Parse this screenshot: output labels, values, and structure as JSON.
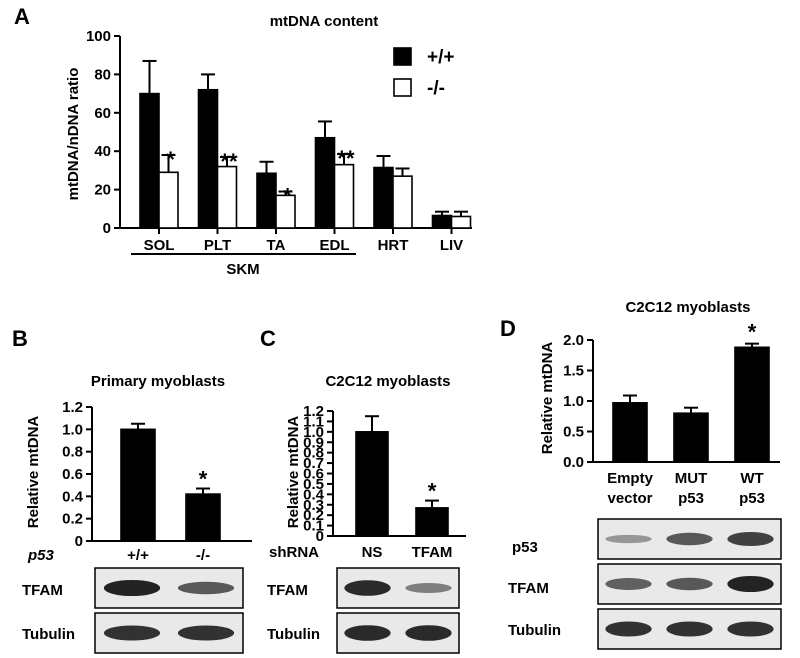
{
  "colors": {
    "bar_filled": "#000000",
    "bar_open": "#ffffff",
    "stroke": "#000000",
    "blot_bg": "#e9e9e9",
    "band": "#1a1a1a"
  },
  "panels": {
    "A": {
      "letter": "A",
      "title": "mtDNA content",
      "ylabel": "mtDNA/nDNA ratio",
      "group_label": "SKM",
      "legend": [
        "+/+",
        "-/-"
      ]
    },
    "B": {
      "letter": "B",
      "title": "Primary myoblasts",
      "ylabel": "Relative mtDNA",
      "row_label": "p53",
      "blots": [
        "TFAM",
        "Tubulin"
      ]
    },
    "C": {
      "letter": "C",
      "title": "C2C12 myoblasts",
      "ylabel": "Relative mtDNA",
      "row_label": "shRNA",
      "blots": [
        "TFAM",
        "Tubulin"
      ]
    },
    "D": {
      "letter": "D",
      "title": "C2C12 myoblasts",
      "ylabel": "Relative mtDNA",
      "blots": [
        "p53",
        "TFAM",
        "Tubulin"
      ]
    }
  },
  "chart_data": [
    {
      "panel": "A",
      "type": "bar",
      "title": "mtDNA content",
      "xlabel": "",
      "ylabel": "mtDNA/nDNA ratio",
      "ylim": [
        0,
        100
      ],
      "yticks": [
        0,
        20,
        40,
        60,
        80,
        100
      ],
      "categories": [
        "SOL",
        "PLT",
        "TA",
        "EDL",
        "HRT",
        "LIV"
      ],
      "series": [
        {
          "name": "+/+",
          "values": [
            70,
            72,
            28.5,
            47,
            31.5,
            6.5
          ],
          "errors": [
            17,
            8,
            6,
            8.5,
            6,
            2
          ]
        },
        {
          "name": "-/-",
          "values": [
            29,
            32,
            17,
            33,
            27,
            6
          ],
          "errors": [
            9,
            5,
            2,
            5.5,
            4,
            2.5
          ]
        }
      ],
      "annotations": [
        "*",
        "**",
        "*",
        "**",
        "",
        ""
      ],
      "grid": false,
      "legend": "top-right"
    },
    {
      "panel": "B",
      "type": "bar",
      "title": "Primary myoblasts",
      "xlabel": "p53",
      "ylabel": "Relative mtDNA",
      "ylim": [
        0,
        1.2
      ],
      "yticks": [
        "0",
        "0.2",
        "0.4",
        "0.6",
        "0.8",
        "1.0",
        "1.2"
      ],
      "categories": [
        "+/+",
        "-/-"
      ],
      "values": [
        1.0,
        0.42
      ],
      "errors": [
        0.05,
        0.05
      ],
      "annotations": [
        "",
        "*"
      ],
      "grid": false
    },
    {
      "panel": "C",
      "type": "bar",
      "title": "C2C12 myoblasts",
      "xlabel": "shRNA",
      "ylabel": "Relative mtDNA",
      "ylim": [
        0,
        1.2
      ],
      "yticks": [
        "0",
        "0.1",
        "0.2",
        "0.3",
        "0.4",
        "0.5",
        "0.6",
        "0.7",
        "0.8",
        "0.9",
        "1.0",
        "1.1",
        "1.2"
      ],
      "categories": [
        "NS",
        "TFAM"
      ],
      "values": [
        1.0,
        0.27
      ],
      "errors": [
        0.15,
        0.07
      ],
      "annotations": [
        "",
        "*"
      ],
      "grid": false
    },
    {
      "panel": "D",
      "type": "bar",
      "title": "C2C12 myoblasts",
      "xlabel": "",
      "ylabel": "Relative mtDNA",
      "ylim": [
        0,
        2.0
      ],
      "yticks": [
        "0.0",
        "0.5",
        "1.0",
        "1.5",
        "2.0"
      ],
      "categories": [
        [
          "Empty",
          "vector"
        ],
        [
          "MUT",
          "p53"
        ],
        [
          "WT",
          "p53"
        ]
      ],
      "values": [
        0.97,
        0.8,
        1.88
      ],
      "errors": [
        0.12,
        0.09,
        0.06
      ],
      "annotations": [
        "",
        "",
        "*"
      ],
      "grid": false
    }
  ]
}
